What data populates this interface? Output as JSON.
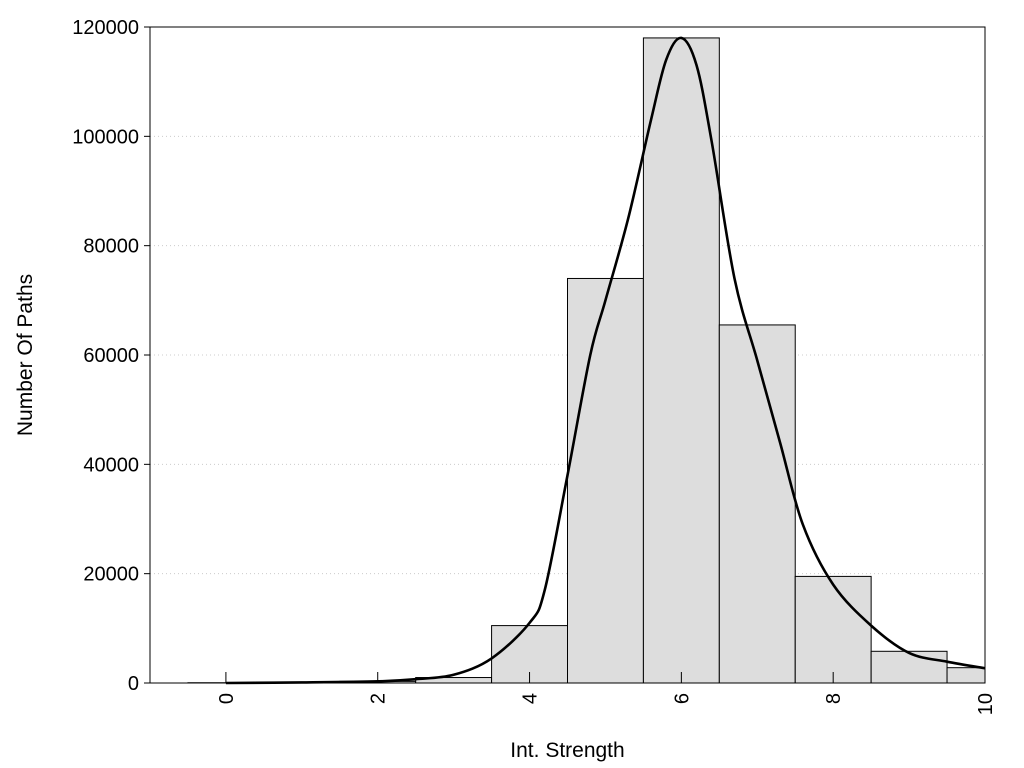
{
  "chart_data": {
    "type": "bar",
    "title": "",
    "xlabel": "Int. Strength",
    "ylabel": "Number Of Paths",
    "xlim": [
      -1,
      10
    ],
    "ylim": [
      0,
      120000
    ],
    "grid": "horizontal dotted",
    "x_ticks": [
      0,
      2,
      4,
      6,
      8,
      10
    ],
    "x_tick_labels": [
      "0",
      "2",
      "4",
      "6",
      "8",
      "10"
    ],
    "y_ticks": [
      0,
      20000,
      40000,
      60000,
      80000,
      100000,
      120000
    ],
    "y_tick_labels": [
      "0",
      "20000",
      "40000",
      "60000",
      "80000",
      "100000",
      "120000"
    ],
    "bar_width": 1,
    "categories": [
      0,
      1,
      2,
      3,
      4,
      5,
      6,
      7,
      8,
      9,
      10
    ],
    "values": [
      50,
      100,
      300,
      1000,
      10500,
      74000,
      118000,
      65500,
      19500,
      5800,
      2800
    ],
    "curve": {
      "x": [
        0,
        1,
        2,
        2.5,
        3,
        3.5,
        4,
        4.2,
        4.5,
        4.8,
        5,
        5.3,
        5.6,
        5.8,
        6,
        6.2,
        6.4,
        6.7,
        7,
        7.3,
        7.6,
        8,
        8.5,
        9,
        9.5,
        10
      ],
      "y": [
        0,
        100,
        300,
        700,
        1500,
        4500,
        11000,
        17000,
        38000,
        60000,
        70000,
        85000,
        103000,
        114000,
        118000,
        113000,
        99000,
        74000,
        59000,
        44000,
        29000,
        18000,
        10500,
        5500,
        3900,
        2700
      ]
    },
    "colors": {
      "bar_fill": "#dddddd",
      "bar_stroke": "#000000",
      "curve": "#000000",
      "grid": "#cccccc"
    }
  }
}
